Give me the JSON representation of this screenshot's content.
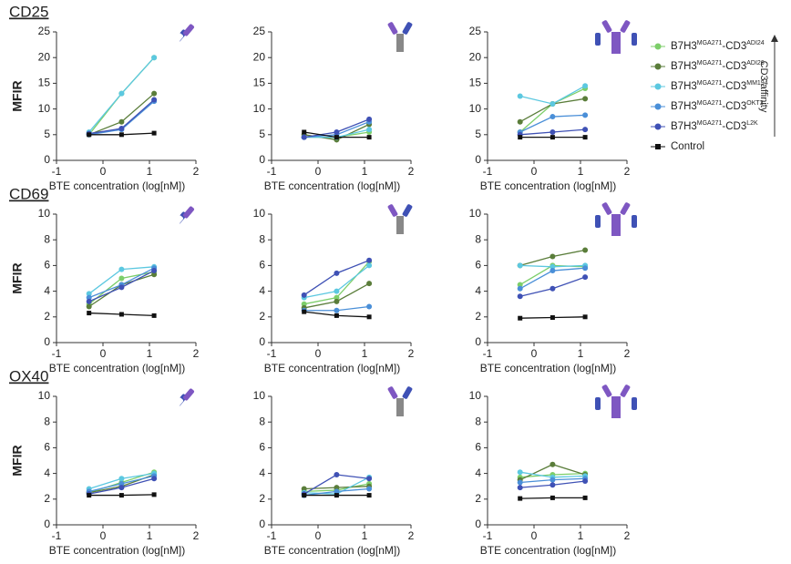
{
  "figure": {
    "rows": [
      "CD25",
      "CD69",
      "OX40"
    ],
    "y_label": "MFIR",
    "affinity_label": "CD3 affinity"
  },
  "legend": [
    {
      "name": [
        "B7H3",
        "MGA271",
        "-CD3",
        "ADI24"
      ],
      "color": "#7dce6a"
    },
    {
      "name": [
        "B7H3",
        "MGA271",
        "-CD3",
        "ADI26"
      ],
      "color": "#5a7d3a"
    },
    {
      "name": [
        "B7H3",
        "MGA271",
        "-CD3",
        "MM194"
      ],
      "color": "#5cc8e0"
    },
    {
      "name": [
        "B7H3",
        "MGA271",
        "-CD3",
        "OKT3"
      ],
      "color": "#4a8fd8"
    },
    {
      "name": [
        "B7H3",
        "MGA271",
        "-CD3",
        "L2K"
      ],
      "color": "#3f51b5"
    },
    {
      "name": [
        "Control"
      ],
      "color": "#111111"
    }
  ],
  "chart_data": [
    {
      "type": "line",
      "xlabel": "BTE concentration (log[nM])",
      "x": [
        -0.3,
        0.4,
        1.1
      ],
      "xlim": [
        -1,
        2
      ],
      "xticks": [
        -1,
        0,
        1,
        2
      ],
      "ylim": [
        0,
        25
      ],
      "yticks": [
        0,
        5,
        10,
        15,
        20,
        25
      ],
      "series": [
        {
          "values": [
            5,
            13,
            20
          ]
        },
        {
          "values": [
            5,
            7.5,
            13
          ]
        },
        {
          "values": [
            5.5,
            13,
            20
          ]
        },
        {
          "values": [
            5,
            6,
            11.5
          ]
        },
        {
          "values": [
            5.2,
            6.2,
            11.8
          ]
        },
        {
          "values": [
            5,
            5,
            5.3
          ]
        }
      ]
    },
    {
      "type": "line",
      "xlabel": "BTE concentration (log[nM])",
      "x": [
        -0.3,
        0.4,
        1.1
      ],
      "xlim": [
        -1,
        2
      ],
      "xticks": [
        -1,
        0,
        1,
        2
      ],
      "ylim": [
        0,
        25
      ],
      "yticks": [
        0,
        5,
        10,
        15,
        20,
        25
      ],
      "series": [
        {
          "values": [
            4.5,
            4.5,
            5.5
          ]
        },
        {
          "values": [
            5,
            4,
            7
          ]
        },
        {
          "values": [
            4.5,
            4.5,
            6
          ]
        },
        {
          "values": [
            4.5,
            5,
            7.5
          ]
        },
        {
          "values": [
            4.5,
            5.5,
            8
          ]
        },
        {
          "values": [
            5.5,
            4.5,
            4.5
          ]
        }
      ]
    },
    {
      "type": "line",
      "xlabel": "BTE concentration (log[nM])",
      "x": [
        -0.3,
        0.4,
        1.1
      ],
      "xlim": [
        -1,
        2
      ],
      "xticks": [
        -1,
        0,
        1,
        2
      ],
      "ylim": [
        0,
        25
      ],
      "yticks": [
        0,
        5,
        10,
        15,
        20,
        25
      ],
      "series": [
        {
          "values": [
            5.5,
            11,
            14
          ]
        },
        {
          "values": [
            7.5,
            11,
            12
          ]
        },
        {
          "values": [
            12.5,
            11,
            14.5
          ]
        },
        {
          "values": [
            5.5,
            8.5,
            8.8
          ]
        },
        {
          "values": [
            5,
            5.5,
            6
          ]
        },
        {
          "values": [
            4.5,
            4.5,
            4.5
          ]
        }
      ]
    },
    {
      "type": "line",
      "xlabel": "BTE concentration (log[nM])",
      "x": [
        -0.3,
        0.4,
        1.1
      ],
      "xlim": [
        -1,
        2
      ],
      "xticks": [
        -1,
        0,
        1,
        2
      ],
      "ylim": [
        0,
        10
      ],
      "yticks": [
        0,
        2,
        4,
        6,
        8,
        10
      ],
      "series": [
        {
          "values": [
            3,
            5,
            5.5
          ]
        },
        {
          "values": [
            2.8,
            4.5,
            5.3
          ]
        },
        {
          "values": [
            3.8,
            5.7,
            5.9
          ]
        },
        {
          "values": [
            3.5,
            4.5,
            5.8
          ]
        },
        {
          "values": [
            3.2,
            4.3,
            5.6
          ]
        },
        {
          "values": [
            2.3,
            2.2,
            2.1
          ]
        }
      ]
    },
    {
      "type": "line",
      "xlabel": "BTE concentration (log[nM])",
      "x": [
        -0.3,
        0.4,
        1.1
      ],
      "xlim": [
        -1,
        2
      ],
      "xticks": [
        -1,
        0,
        1,
        2
      ],
      "ylim": [
        0,
        10
      ],
      "yticks": [
        0,
        2,
        4,
        6,
        8,
        10
      ],
      "series": [
        {
          "values": [
            3,
            3.5,
            6.3
          ]
        },
        {
          "values": [
            2.7,
            3.2,
            4.6
          ]
        },
        {
          "values": [
            3.5,
            4,
            6
          ]
        },
        {
          "values": [
            2.5,
            2.5,
            2.8
          ]
        },
        {
          "values": [
            3.7,
            5.4,
            6.4
          ]
        },
        {
          "values": [
            2.4,
            2.1,
            2
          ]
        }
      ]
    },
    {
      "type": "line",
      "xlabel": "BTE concentration (log[nM])",
      "x": [
        -0.3,
        0.4,
        1.1
      ],
      "xlim": [
        -1,
        2
      ],
      "xticks": [
        -1,
        0,
        1,
        2
      ],
      "ylim": [
        0,
        10
      ],
      "yticks": [
        0,
        2,
        4,
        6,
        8,
        10
      ],
      "series": [
        {
          "values": [
            4.5,
            6,
            5.9
          ]
        },
        {
          "values": [
            6,
            6.7,
            7.2
          ]
        },
        {
          "values": [
            6,
            5.9,
            6
          ]
        },
        {
          "values": [
            4.2,
            5.6,
            5.8
          ]
        },
        {
          "values": [
            3.6,
            4.2,
            5.1
          ]
        },
        {
          "values": [
            1.9,
            1.95,
            2
          ]
        }
      ]
    },
    {
      "type": "line",
      "xlabel": "BTE concentration (log[nM])",
      "x": [
        -0.3,
        0.4,
        1.1
      ],
      "xlim": [
        -1,
        2
      ],
      "xticks": [
        -1,
        0,
        1,
        2
      ],
      "ylim": [
        0,
        10
      ],
      "yticks": [
        0,
        2,
        4,
        6,
        8,
        10
      ],
      "series": [
        {
          "values": [
            2.5,
            3.3,
            4.1
          ]
        },
        {
          "values": [
            2.5,
            3,
            3.9
          ]
        },
        {
          "values": [
            2.8,
            3.6,
            4
          ]
        },
        {
          "values": [
            2.6,
            3.2,
            3.8
          ]
        },
        {
          "values": [
            2.4,
            2.9,
            3.6
          ]
        },
        {
          "values": [
            2.3,
            2.3,
            2.35
          ]
        }
      ]
    },
    {
      "type": "line",
      "xlabel": "BTE concentration (log[nM])",
      "x": [
        -0.3,
        0.4,
        1.1
      ],
      "xlim": [
        -1,
        2
      ],
      "xticks": [
        -1,
        0,
        1,
        2
      ],
      "ylim": [
        0,
        10
      ],
      "yticks": [
        0,
        2,
        4,
        6,
        8,
        10
      ],
      "series": [
        {
          "values": [
            2.6,
            2.7,
            3.2
          ]
        },
        {
          "values": [
            2.8,
            2.9,
            3
          ]
        },
        {
          "values": [
            2.5,
            2.4,
            3.7
          ]
        },
        {
          "values": [
            2.3,
            2.6,
            2.8
          ]
        },
        {
          "values": [
            2.4,
            3.9,
            3.6
          ]
        },
        {
          "values": [
            2.3,
            2.3,
            2.3
          ]
        }
      ]
    },
    {
      "type": "line",
      "xlabel": "BTE concentration (log[nM])",
      "x": [
        -0.3,
        0.4,
        1.1
      ],
      "xlim": [
        -1,
        2
      ],
      "xticks": [
        -1,
        0,
        1,
        2
      ],
      "ylim": [
        0,
        10
      ],
      "yticks": [
        0,
        2,
        4,
        6,
        8,
        10
      ],
      "series": [
        {
          "values": [
            3.7,
            3.9,
            4
          ]
        },
        {
          "values": [
            3.5,
            4.7,
            3.9
          ]
        },
        {
          "values": [
            4.1,
            3.7,
            3.8
          ]
        },
        {
          "values": [
            3.3,
            3.5,
            3.6
          ]
        },
        {
          "values": [
            2.9,
            3.1,
            3.4
          ]
        },
        {
          "values": [
            2.05,
            2.1,
            2.1
          ]
        }
      ]
    }
  ]
}
